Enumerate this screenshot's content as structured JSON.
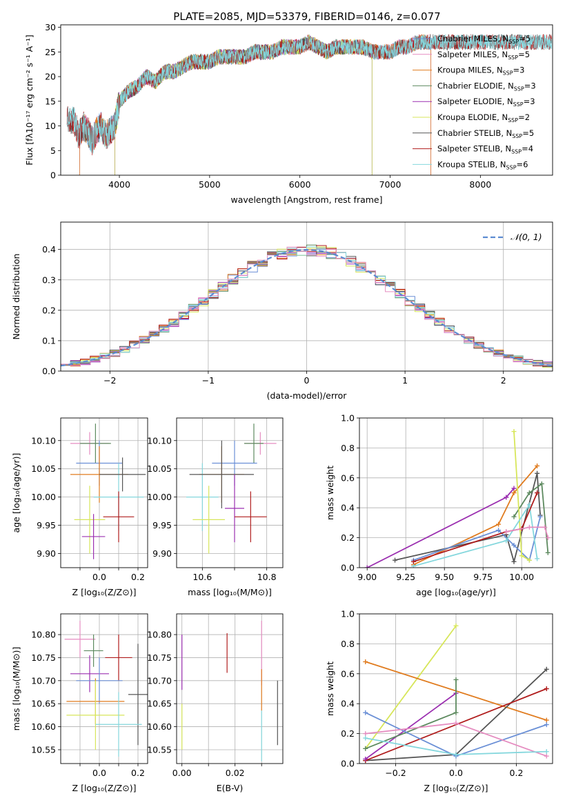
{
  "figure": {
    "title": "PLATE=2085, MJD=53379, FIBERID=0146, z=0.077"
  },
  "model_colors": [
    "#6a8fd6",
    "#e07b1e",
    "#5d8a5f",
    "#9b2fb0",
    "#d7e65a",
    "#555555",
    "#b01c1c",
    "#84d7dd",
    "#e58cc0"
  ],
  "chart_data": [
    {
      "id": "spectrum",
      "type": "line",
      "xlabel": "wavelength [Angstrom, rest frame]",
      "ylabel": "Flux [fλ10⁻¹⁷ erg cm⁻² s⁻¹ A⁻¹]",
      "xlim": [
        3350,
        8800
      ],
      "ylim": [
        0,
        30.5
      ],
      "xticks": [
        4000,
        5000,
        6000,
        7000,
        8000
      ],
      "yticks": [
        0,
        5,
        10,
        15,
        20,
        25,
        30
      ],
      "legend": "top-right",
      "continuum": {
        "x": [
          3500,
          3550,
          3600,
          3650,
          3700,
          3750,
          3800,
          3850,
          3900,
          3950,
          4000,
          4100,
          4200,
          4300,
          4400,
          4500,
          4600,
          4700,
          4800,
          4900,
          5000,
          5100,
          5200,
          5300,
          5400,
          5500,
          5600,
          5700,
          5800,
          5900,
          6000,
          6100,
          6200,
          6300,
          6400,
          6500,
          6600,
          6700,
          6800,
          6900,
          7000,
          7100,
          7200,
          7300,
          7400
        ],
        "y": [
          11,
          8,
          10,
          9,
          7,
          9,
          10,
          8,
          9,
          10,
          15,
          17,
          18,
          20,
          19,
          21,
          21,
          22,
          23,
          23,
          23,
          24,
          24,
          24,
          24,
          25,
          25,
          25,
          26,
          26,
          26,
          27,
          26,
          25,
          26,
          26,
          26,
          26,
          25,
          25,
          25,
          26,
          26,
          27,
          27
        ]
      },
      "series": [
        {
          "name": "Chabrier MILES, N",
          "sub": "SSP",
          "suffix": "=5",
          "color": "#6a8fd6",
          "range": [
            3520,
            7450
          ]
        },
        {
          "name": "Salpeter MILES, N",
          "sub": "SSP",
          "suffix": "=5",
          "color": "#e58cc0",
          "range": [
            3520,
            7450
          ]
        },
        {
          "name": "Kroupa MILES, N",
          "sub": "SSP",
          "suffix": "=3",
          "color": "#e07b1e",
          "range": [
            3520,
            7450
          ]
        },
        {
          "name": "Chabrier ELODIE, N",
          "sub": "SSP",
          "suffix": "=3",
          "color": "#5d8a5f",
          "range": [
            3950,
            6800
          ]
        },
        {
          "name": "Salpeter ELODIE, N",
          "sub": "SSP",
          "suffix": "=3",
          "color": "#9b2fb0",
          "range": [
            3950,
            6800
          ]
        },
        {
          "name": "Kroupa ELODIE, N",
          "sub": "SSP",
          "suffix": "=2",
          "color": "#d7e65a",
          "range": [
            3950,
            6800
          ]
        },
        {
          "name": "Chabrier STELIB, N",
          "sub": "SSP",
          "suffix": "=5",
          "color": "#555555",
          "range": [
            3350,
            8800
          ]
        },
        {
          "name": "Salpeter STELIB, N",
          "sub": "SSP",
          "suffix": "=4",
          "color": "#b01c1c",
          "range": [
            3350,
            8800
          ]
        },
        {
          "name": "Kroupa STELIB, N",
          "sub": "SSP",
          "suffix": "=6",
          "color": "#84d7dd",
          "range": [
            3350,
            8800
          ]
        }
      ]
    },
    {
      "id": "residuals",
      "type": "histogram",
      "xlabel": "(data-model)/error",
      "ylabel": "Normed distribution",
      "xlim": [
        -2.5,
        2.5
      ],
      "ylim": [
        0,
        0.49
      ],
      "xticks": [
        -2,
        -1,
        0,
        1,
        2
      ],
      "yticks": [
        0.0,
        0.1,
        0.2,
        0.3,
        0.4
      ],
      "grid": true,
      "bin_width": 0.1,
      "legend": "top-right",
      "legend_label": "𝒩(0, 1)",
      "reference": {
        "mean": 0,
        "sigma": 1,
        "style": "dashed",
        "color": "#5b8bd1"
      }
    },
    {
      "id": "z-age",
      "type": "errorbar",
      "xlabel": "Z [log₁₀(Z/Z⊙)]",
      "ylabel": "age  [log₁₀(age/yr)]",
      "xlim": [
        -0.2,
        0.25
      ],
      "ylim": [
        9.875,
        10.14
      ],
      "xticks": [
        -0.1,
        0.0,
        0.1,
        0.2
      ],
      "xticklabels": [
        "",
        "0.0",
        "",
        "0.2"
      ],
      "yticks": [
        9.9,
        9.95,
        10.0,
        10.05,
        10.1
      ],
      "grid": true,
      "points": [
        {
          "x": -0.05,
          "y": 10.095,
          "xerr": 0.1,
          "yerr": 0.02,
          "color": "#e58cc0"
        },
        {
          "x": -0.02,
          "y": 10.095,
          "xerr": 0.08,
          "yerr": 0.035,
          "color": "#5d8a5f"
        },
        {
          "x": 0.0,
          "y": 10.06,
          "xerr": 0.12,
          "yerr": 0.04,
          "color": "#6a8fd6"
        },
        {
          "x": 0.0,
          "y": 10.04,
          "xerr": 0.15,
          "yerr": 0.05,
          "color": "#e07b1e"
        },
        {
          "x": 0.1,
          "y": 10.0,
          "xerr": 0.13,
          "yerr": 0.06,
          "color": "#84d7dd"
        },
        {
          "x": 0.12,
          "y": 10.04,
          "xerr": 0.12,
          "yerr": 0.03,
          "color": "#555555"
        },
        {
          "x": -0.05,
          "y": 9.96,
          "xerr": 0.08,
          "yerr": 0.06,
          "color": "#d7e65a"
        },
        {
          "x": -0.03,
          "y": 9.93,
          "xerr": 0.06,
          "yerr": 0.04,
          "color": "#9b2fb0"
        },
        {
          "x": 0.1,
          "y": 9.965,
          "xerr": 0.08,
          "yerr": 0.045,
          "color": "#b01c1c"
        }
      ]
    },
    {
      "id": "mass-age",
      "type": "errorbar",
      "xlabel": "mass [log₁₀(M/M⊙)]",
      "ylabel": "",
      "xlim": [
        10.52,
        10.85
      ],
      "ylim": [
        9.875,
        10.14
      ],
      "xticks": [
        10.6,
        10.7,
        10.8
      ],
      "xticklabels": [
        "10.6",
        "",
        "10.8"
      ],
      "yticks": [
        9.9,
        9.95,
        10.0,
        10.05,
        10.1
      ],
      "grid": true,
      "points": [
        {
          "x": 10.78,
          "y": 10.095,
          "xerr": 0.05,
          "yerr": 0.02,
          "color": "#e58cc0"
        },
        {
          "x": 10.76,
          "y": 10.095,
          "xerr": 0.03,
          "yerr": 0.035,
          "color": "#5d8a5f"
        },
        {
          "x": 10.7,
          "y": 10.06,
          "xerr": 0.07,
          "yerr": 0.04,
          "color": "#6a8fd6"
        },
        {
          "x": 10.66,
          "y": 10.04,
          "xerr": 0.07,
          "yerr": 0.05,
          "color": "#e07b1e"
        },
        {
          "x": 10.6,
          "y": 10.0,
          "xerr": 0.05,
          "yerr": 0.06,
          "color": "#84d7dd"
        },
        {
          "x": 10.66,
          "y": 10.04,
          "xerr": 0.1,
          "yerr": 0.06,
          "color": "#555555"
        },
        {
          "x": 10.62,
          "y": 9.96,
          "xerr": 0.05,
          "yerr": 0.06,
          "color": "#d7e65a"
        },
        {
          "x": 10.7,
          "y": 9.98,
          "xerr": 0.03,
          "yerr": 0.06,
          "color": "#9b2fb0"
        },
        {
          "x": 10.75,
          "y": 9.965,
          "xerr": 0.05,
          "yerr": 0.045,
          "color": "#b01c1c"
        }
      ]
    },
    {
      "id": "age-weight",
      "type": "line",
      "xlabel": "age  [log₁₀(age/yr)]",
      "ylabel": "mass weight",
      "xlim": [
        8.95,
        10.2
      ],
      "ylim": [
        0.0,
        1.0
      ],
      "xticks": [
        9.0,
        9.25,
        9.5,
        9.75,
        10.0
      ],
      "xticklabels": [
        "9.00",
        "9.25",
        "9.50",
        "9.75",
        "10.00"
      ],
      "yticks": [
        0.0,
        0.2,
        0.4,
        0.6,
        0.8,
        1.0
      ],
      "grid": true,
      "series": [
        {
          "color": "#9b2fb0",
          "x": [
            9.0,
            9.9,
            9.95
          ],
          "y": [
            0.0,
            0.47,
            0.53
          ]
        },
        {
          "color": "#e07b1e",
          "x": [
            9.3,
            9.85,
            9.95,
            10.1
          ],
          "y": [
            0.02,
            0.29,
            0.5,
            0.68
          ]
        },
        {
          "color": "#555555",
          "x": [
            9.18,
            9.9,
            9.95,
            10.1,
            10.12
          ],
          "y": [
            0.05,
            0.22,
            0.04,
            0.63,
            0.35
          ]
        },
        {
          "color": "#6a8fd6",
          "x": [
            9.3,
            9.85,
            9.95,
            10.05,
            10.12
          ],
          "y": [
            0.05,
            0.25,
            0.15,
            0.05,
            0.34
          ]
        },
        {
          "color": "#5d8a5f",
          "x": [
            9.95,
            10.05,
            10.13,
            10.17
          ],
          "y": [
            0.34,
            0.5,
            0.56,
            0.1
          ]
        },
        {
          "color": "#d7e65a",
          "x": [
            9.95,
            10.0,
            10.05
          ],
          "y": [
            0.91,
            0.08,
            0.05
          ]
        },
        {
          "color": "#84d7dd",
          "x": [
            9.3,
            9.9,
            10.05,
            10.1
          ],
          "y": [
            0.01,
            0.18,
            0.42,
            0.06
          ]
        },
        {
          "color": "#b01c1c",
          "x": [
            9.3,
            9.9,
            10.0,
            10.1
          ],
          "y": [
            0.04,
            0.24,
            0.26,
            0.5
          ]
        },
        {
          "color": "#e58cc0",
          "x": [
            9.9,
            10.05,
            10.15,
            10.17
          ],
          "y": [
            0.24,
            0.27,
            0.27,
            0.2
          ]
        }
      ]
    },
    {
      "id": "z-mass",
      "type": "errorbar",
      "xlabel": "Z [log₁₀(Z/Z⊙)]",
      "ylabel": "mass [log₁₀(M/M⊙)]",
      "xlim": [
        -0.2,
        0.25
      ],
      "ylim": [
        10.52,
        10.845
      ],
      "xticks": [
        -0.1,
        0.0,
        0.1,
        0.2
      ],
      "xticklabels": [
        "",
        "0.0",
        "",
        "0.2"
      ],
      "yticks": [
        10.55,
        10.6,
        10.65,
        10.7,
        10.75,
        10.8
      ],
      "grid": true,
      "points": [
        {
          "x": -0.1,
          "y": 10.79,
          "xerr": 0.08,
          "yerr": 0.04,
          "color": "#e58cc0"
        },
        {
          "x": -0.03,
          "y": 10.765,
          "xerr": 0.05,
          "yerr": 0.035,
          "color": "#5d8a5f"
        },
        {
          "x": 0.1,
          "y": 10.75,
          "xerr": 0.07,
          "yerr": 0.05,
          "color": "#b01c1c"
        },
        {
          "x": -0.05,
          "y": 10.715,
          "xerr": 0.1,
          "yerr": 0.04,
          "color": "#9b2fb0"
        },
        {
          "x": 0.0,
          "y": 10.7,
          "xerr": 0.12,
          "yerr": 0.05,
          "color": "#6a8fd6"
        },
        {
          "x": 0.2,
          "y": 10.67,
          "xerr": 0.05,
          "yerr": 0.11,
          "color": "#555555"
        },
        {
          "x": -0.02,
          "y": 10.655,
          "xerr": 0.15,
          "yerr": 0.05,
          "color": "#e07b1e"
        },
        {
          "x": -0.02,
          "y": 10.625,
          "xerr": 0.15,
          "yerr": 0.075,
          "color": "#d7e65a"
        },
        {
          "x": 0.1,
          "y": 10.605,
          "xerr": 0.12,
          "yerr": 0.07,
          "color": "#84d7dd"
        }
      ]
    },
    {
      "id": "ebv-mass",
      "type": "errorbar",
      "xlabel": "E(B-V)",
      "ylabel": "",
      "xlim": [
        -0.002,
        0.038
      ],
      "ylim": [
        10.52,
        10.845
      ],
      "xticks": [
        0.0,
        0.01,
        0.02,
        0.03
      ],
      "xticklabels": [
        "0.00",
        "",
        "0.02",
        ""
      ],
      "yticks": [
        10.55,
        10.6,
        10.65,
        10.7,
        10.75,
        10.8
      ],
      "grid": true,
      "points": [
        {
          "x": 0.017,
          "y": 10.76,
          "xerr": 0.0,
          "yerr": 0.043,
          "color": "#b01c1c"
        },
        {
          "x": 0.03,
          "y": 10.76,
          "xerr": 0.0,
          "yerr": 0.07,
          "color": "#e58cc0"
        },
        {
          "x": 0.0,
          "y": 10.74,
          "xerr": 0.0,
          "yerr": 0.06,
          "color": "#9b2fb0"
        },
        {
          "x": 0.036,
          "y": 10.63,
          "xerr": 0.0,
          "yerr": 0.07,
          "color": "#555555"
        },
        {
          "x": 0.03,
          "y": 10.68,
          "xerr": 0.0,
          "yerr": 0.045,
          "color": "#e07b1e"
        },
        {
          "x": 0.0,
          "y": 10.6,
          "xerr": 0.0,
          "yerr": 0.05,
          "color": "#d7e65a"
        },
        {
          "x": 0.03,
          "y": 10.58,
          "xerr": 0.0,
          "yerr": 0.055,
          "color": "#84d7dd"
        }
      ]
    },
    {
      "id": "z-weight",
      "type": "line",
      "xlabel": "Z [log₁₀(Z/Z⊙)]",
      "ylabel": "mass weight",
      "xlim": [
        -0.32,
        0.32
      ],
      "ylim": [
        0.0,
        1.0
      ],
      "xticks": [
        -0.2,
        0.0,
        0.2
      ],
      "xticklabels": [
        "−0.2",
        "0.0",
        "0.2"
      ],
      "yticks": [
        0.0,
        0.2,
        0.4,
        0.6,
        0.8,
        1.0
      ],
      "grid": true,
      "series": [
        {
          "color": "#d7e65a",
          "x": [
            -0.3,
            0.0
          ],
          "y": [
            0.1,
            0.92
          ]
        },
        {
          "color": "#e07b1e",
          "x": [
            -0.3,
            0.3
          ],
          "y": [
            0.68,
            0.29
          ]
        },
        {
          "color": "#555555",
          "x": [
            -0.3,
            0.0,
            0.3
          ],
          "y": [
            0.02,
            0.06,
            0.63
          ]
        },
        {
          "color": "#b01c1c",
          "x": [
            -0.3,
            0.3
          ],
          "y": [
            0.02,
            0.5
          ]
        },
        {
          "color": "#9b2fb0",
          "x": [
            -0.3,
            0.0
          ],
          "y": [
            0.03,
            0.47
          ]
        },
        {
          "color": "#5d8a5f",
          "x": [
            -0.3,
            0.0,
            0.0
          ],
          "y": [
            0.1,
            0.34,
            0.56
          ]
        },
        {
          "color": "#6a8fd6",
          "x": [
            -0.3,
            0.0,
            0.3
          ],
          "y": [
            0.34,
            0.05,
            0.26
          ]
        },
        {
          "color": "#e58cc0",
          "x": [
            -0.3,
            0.0,
            0.3
          ],
          "y": [
            0.2,
            0.27,
            0.05
          ]
        },
        {
          "color": "#84d7dd",
          "x": [
            -0.3,
            0.0,
            0.3
          ],
          "y": [
            0.17,
            0.06,
            0.08
          ]
        }
      ]
    }
  ]
}
